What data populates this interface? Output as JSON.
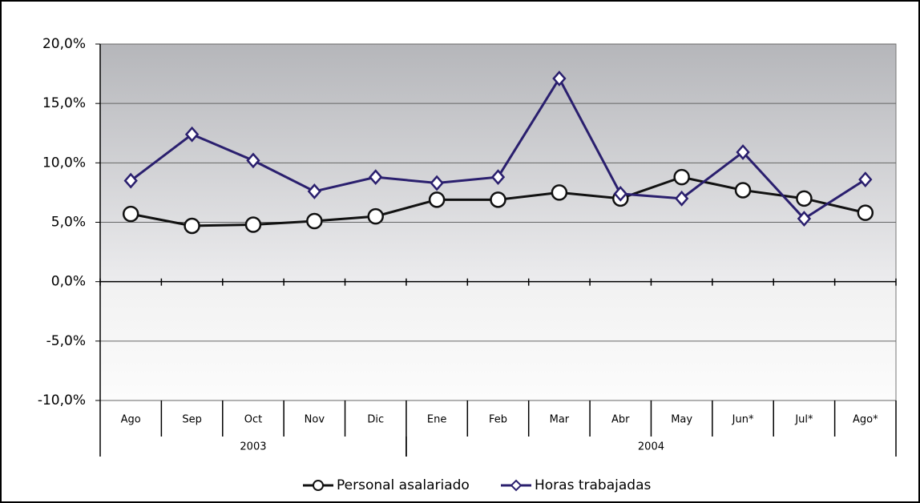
{
  "chart_data": {
    "type": "line",
    "category_groups": [
      {
        "name": "2003",
        "categories": [
          "Ago",
          "Sep",
          "Oct",
          "Nov",
          "Dic"
        ]
      },
      {
        "name": "2004",
        "categories": [
          "Ene",
          "Feb",
          "Mar",
          "Abr",
          "May",
          "Jun*",
          "Jul*",
          "Ago*"
        ]
      }
    ],
    "series": [
      {
        "name": "Personal asalariado",
        "color": "#111111",
        "marker": "circle",
        "values": [
          5.7,
          4.7,
          4.8,
          5.1,
          5.5,
          6.9,
          6.9,
          7.5,
          7.0,
          8.8,
          7.7,
          7.0,
          5.8
        ]
      },
      {
        "name": "Horas trabajadas",
        "color": "#2a1f6e",
        "marker": "diamond",
        "values": [
          8.5,
          12.4,
          10.2,
          7.6,
          8.8,
          8.3,
          8.8,
          17.1,
          7.4,
          7.0,
          10.9,
          5.3,
          8.6
        ]
      }
    ],
    "ylim": [
      -10,
      20
    ],
    "yticks": [
      {
        "value": -10,
        "label": "-10,0%"
      },
      {
        "value": -5,
        "label": "-5,0%"
      },
      {
        "value": 0,
        "label": "0,0%"
      },
      {
        "value": 5,
        "label": "5,0%"
      },
      {
        "value": 10,
        "label": "10,0%"
      },
      {
        "value": 15,
        "label": "15,0%"
      },
      {
        "value": 20,
        "label": "20,0%"
      }
    ],
    "grid": true
  }
}
